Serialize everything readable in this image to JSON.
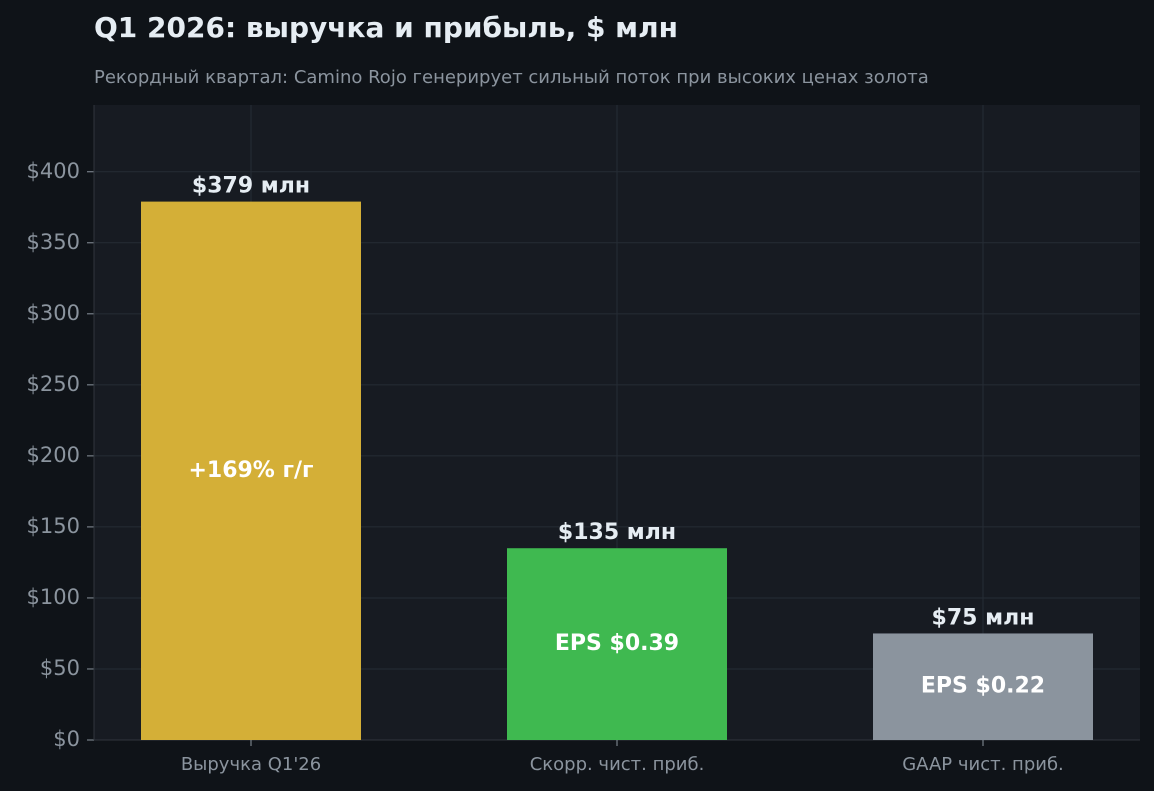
{
  "chart_data": {
    "type": "bar",
    "title": "Q1 2026: выручка и прибыль, $ млн",
    "subtitle": "Рекордный квартал: Camino Rojo генерирует сильный поток при высоких ценах золота",
    "categories": [
      "Выручка Q1'26",
      "Скорр. чист. приб.",
      "GAAP чист. приб."
    ],
    "values": [
      379,
      135,
      75
    ],
    "value_labels": [
      "$379 млн",
      "$135 млн",
      "$75 млн"
    ],
    "inner_labels": [
      "+169% г/г",
      "EPS $0.39",
      "EPS $0.22"
    ],
    "colors": [
      "#d4af37",
      "#3fb950",
      "#8b949e"
    ],
    "ylim": [
      0,
      447
    ],
    "yticks": [
      {
        "value": 0,
        "label": "$0"
      },
      {
        "value": 50,
        "label": "$50"
      },
      {
        "value": 100,
        "label": "$100"
      },
      {
        "value": 150,
        "label": "$150"
      },
      {
        "value": 200,
        "label": "$200"
      },
      {
        "value": 250,
        "label": "$250"
      },
      {
        "value": 300,
        "label": "$300"
      },
      {
        "value": 350,
        "label": "$350"
      },
      {
        "value": 400,
        "label": "$400"
      }
    ],
    "grid": true
  }
}
